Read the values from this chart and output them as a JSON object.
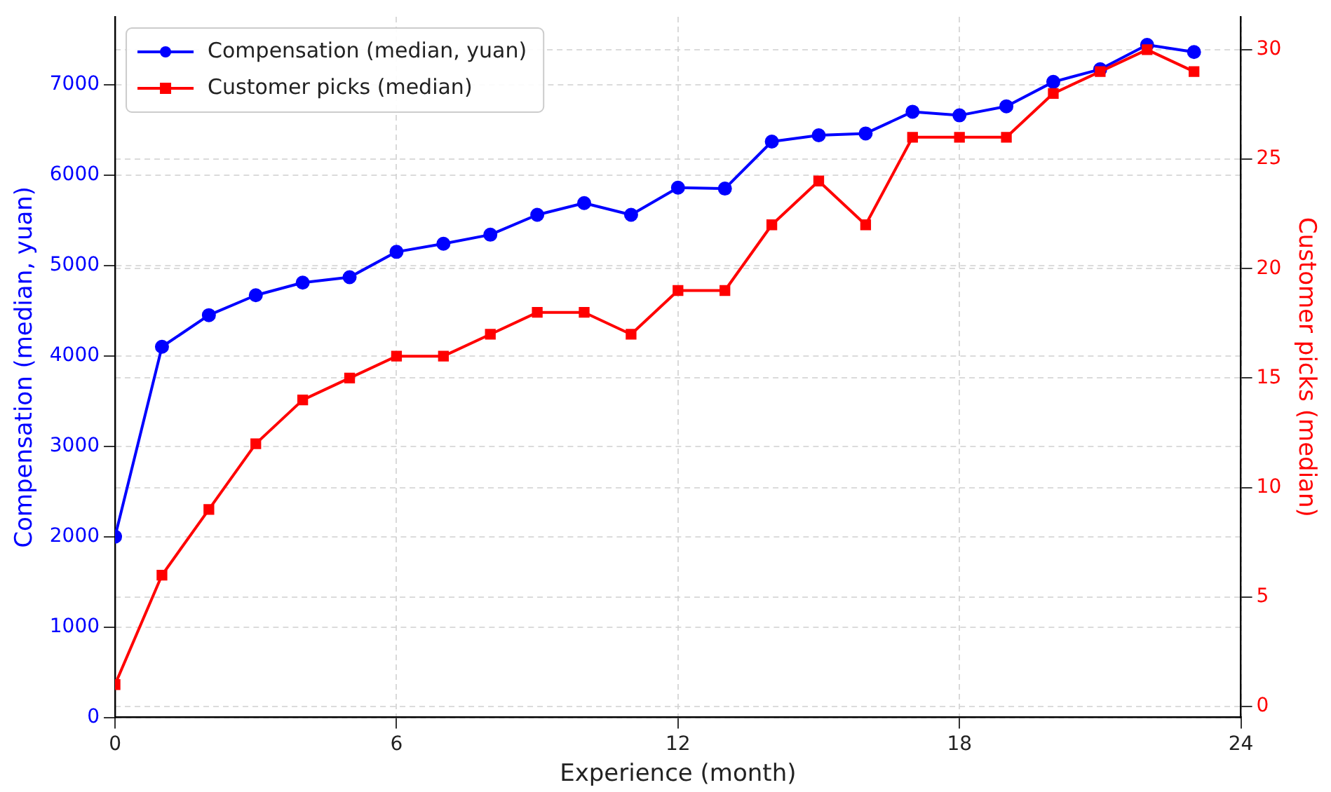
{
  "chart_data": {
    "type": "line",
    "xlabel": "Experience (month)",
    "ylabel": "Compensation (median, yuan)",
    "y2label": "Customer picks (median)",
    "x": [
      0,
      1,
      2,
      3,
      4,
      5,
      6,
      7,
      8,
      9,
      10,
      11,
      12,
      13,
      14,
      15,
      16,
      17,
      18,
      19,
      20,
      21,
      22,
      23
    ],
    "series": [
      {
        "name": "Compensation (median, yuan)",
        "color": "#0000ff",
        "marker": "circle",
        "values": [
          2000,
          4100,
          4450,
          4670,
          4810,
          4870,
          5150,
          5240,
          5340,
          5560,
          5690,
          5560,
          5860,
          5850,
          6370,
          6440,
          6460,
          6700,
          6660,
          6760,
          7030,
          7170,
          7440,
          7360
        ]
      },
      {
        "name": "Customer picks (median)",
        "color": "#ff0000",
        "marker": "square",
        "axis": "y2",
        "values": [
          1,
          6,
          9,
          12,
          14,
          15,
          16,
          16,
          17,
          18,
          18,
          17,
          19,
          19,
          22,
          24,
          22,
          26,
          26,
          26,
          28,
          29,
          30,
          29
        ]
      }
    ],
    "xlim": [
      0,
      24
    ],
    "xticks": [
      0,
      6,
      12,
      18,
      24
    ],
    "ylim": [
      0,
      7750
    ],
    "yticks": [
      0,
      1000,
      2000,
      3000,
      4000,
      5000,
      6000,
      7000
    ],
    "y2lim": [
      -0.5,
      31.5
    ],
    "y2ticks": [
      0,
      5,
      10,
      15,
      20,
      25,
      30
    ],
    "grid": true,
    "legend": "top left",
    "line_style": "solid"
  }
}
